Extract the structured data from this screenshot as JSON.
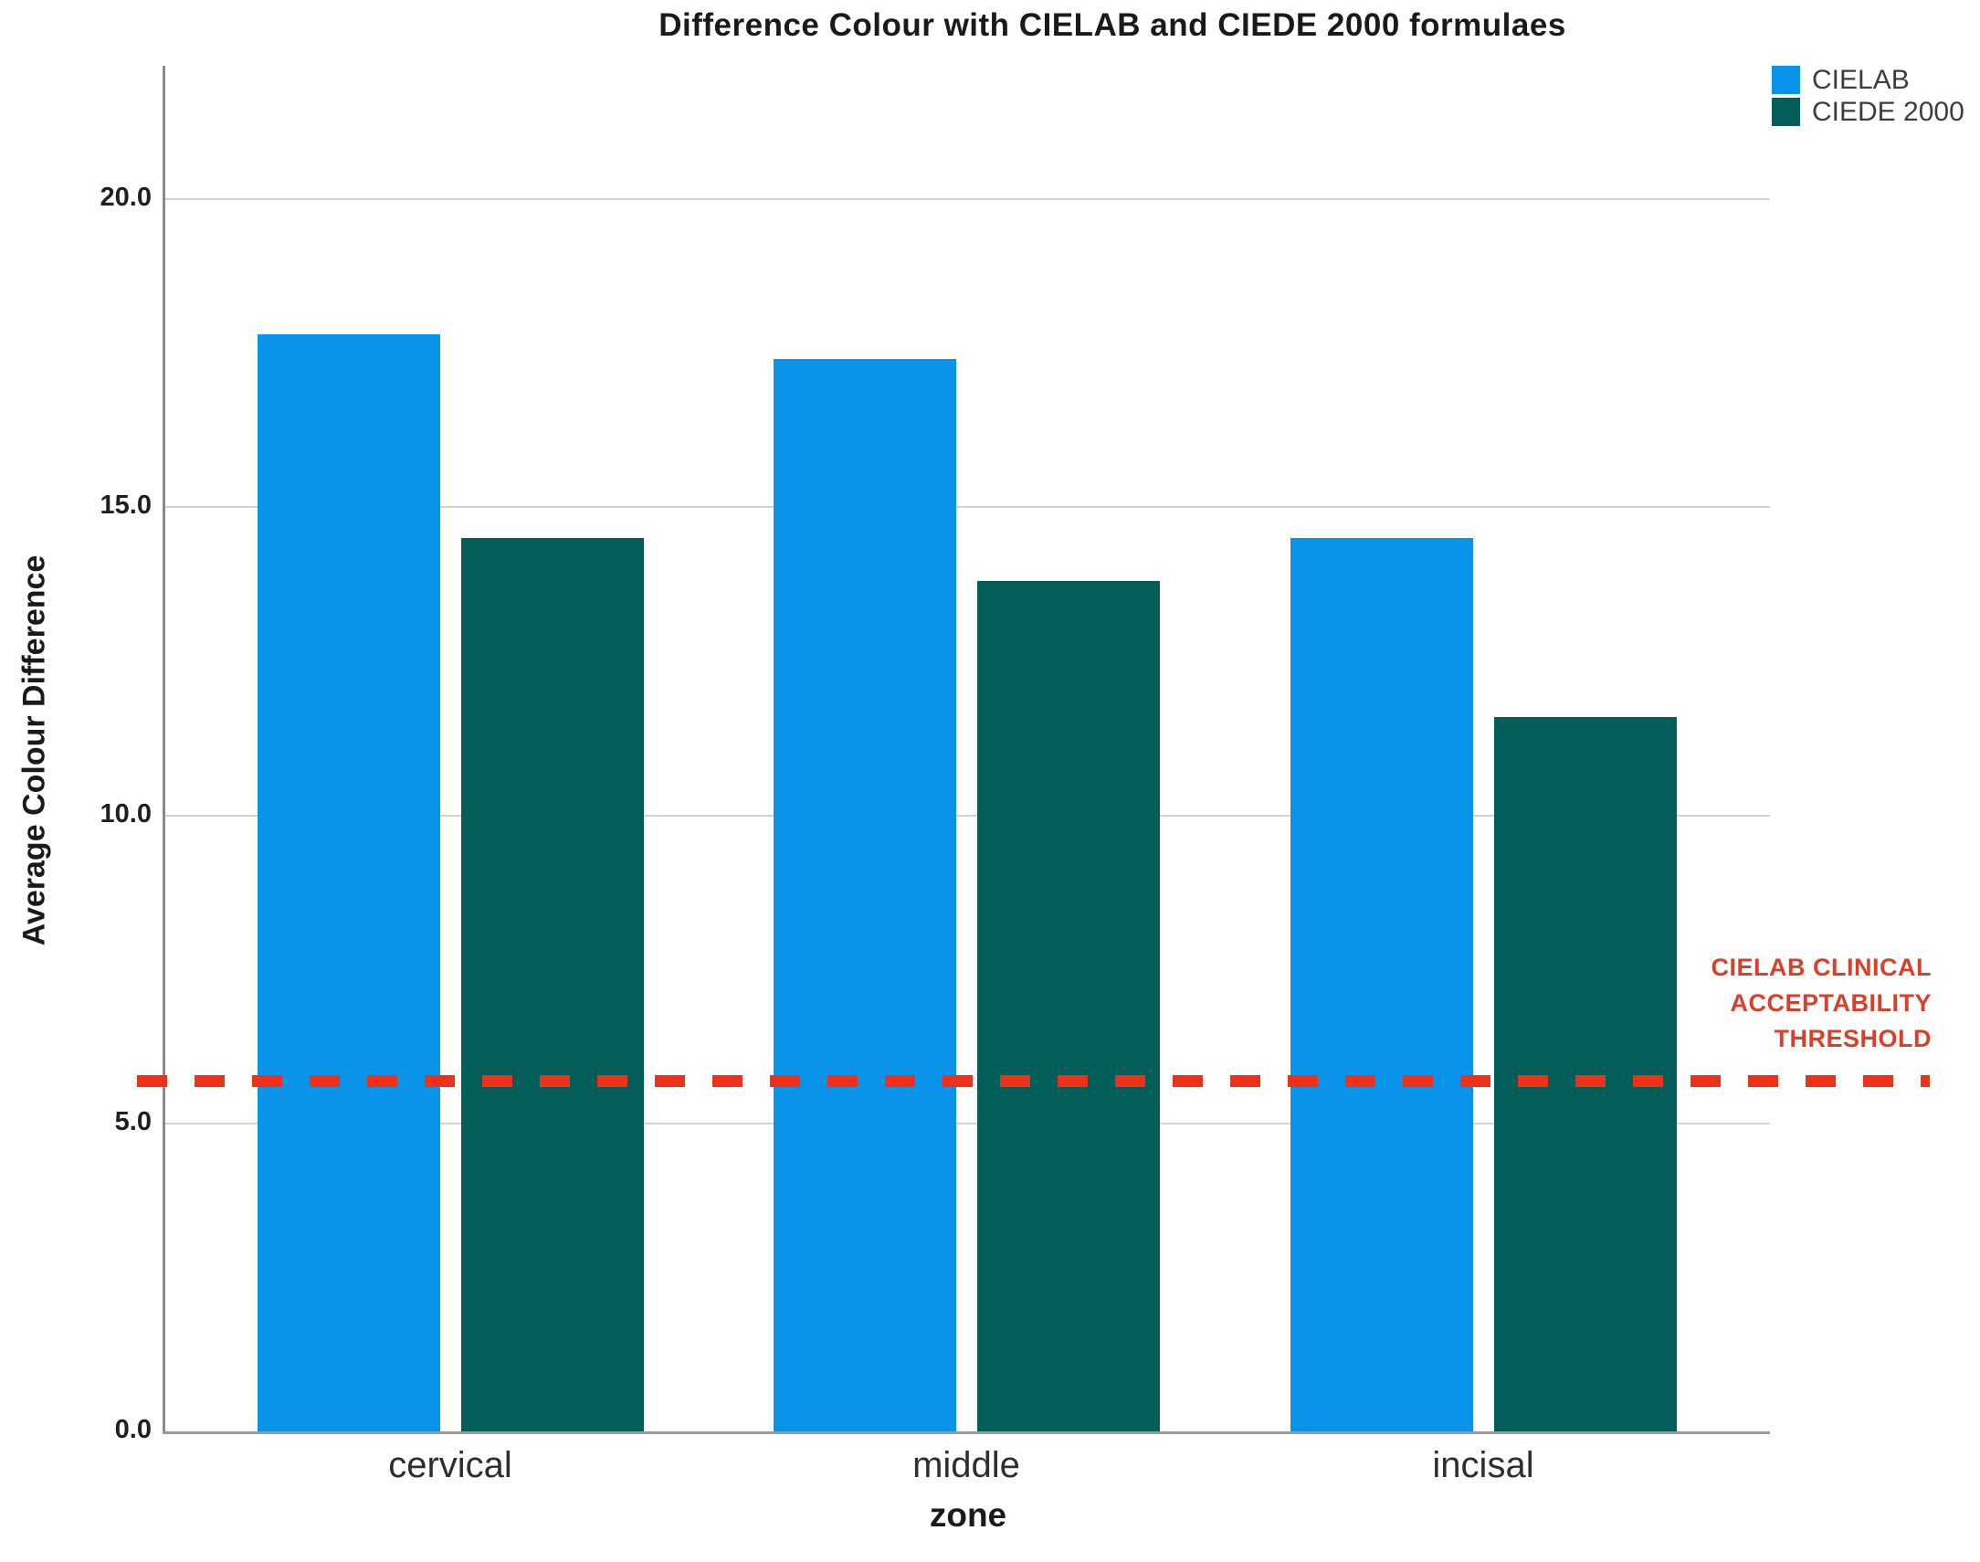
{
  "chart_data": {
    "type": "bar",
    "title": "Difference Colour with CIELAB and CIEDE 2000 formulaes",
    "categories": [
      "cervical",
      "middle",
      "incisal"
    ],
    "series": [
      {
        "name": "CIELAB",
        "color": "#0994e9",
        "values": [
          17.8,
          17.4,
          14.5
        ]
      },
      {
        "name": "CIEDE 2000",
        "color": "#035e59",
        "values": [
          14.5,
          13.8,
          11.6
        ]
      }
    ],
    "xlabel": "zone",
    "ylabel": "Average Colour Difference",
    "ylim": [
      0,
      20
    ],
    "ytick_labels": [
      "0.0",
      "5.0",
      "10.0",
      "15.0",
      "20.0"
    ],
    "yticks": [
      0,
      5,
      10,
      15,
      20
    ],
    "grid": "horizontal",
    "legend_position": "top-right",
    "gridline_color": "#d4d4d4",
    "axis_color": "#8a8a8a",
    "threshold": {
      "value": 5.7,
      "style": "dashed",
      "line_color": "#ee3118",
      "label_color": "#d8402a",
      "label_lines": [
        "CIELAB CLINICAL",
        "ACCEPTABILITY",
        "THRESHOLD"
      ]
    }
  }
}
